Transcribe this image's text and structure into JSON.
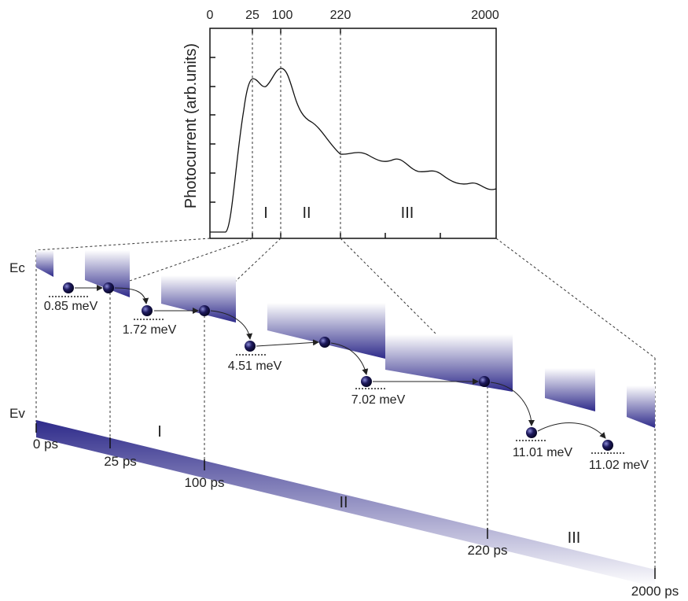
{
  "plot": {
    "y_label": "Photocurrent (arb.units)",
    "top_ticks": [
      "0",
      "25",
      "100",
      "220",
      "2000"
    ],
    "regions": [
      "I",
      "II",
      "III"
    ]
  },
  "diagram": {
    "bands": [
      "Ec",
      "Ev"
    ],
    "times": [
      "0 ps",
      "25 ps",
      "100 ps",
      "220 ps",
      "2000 ps"
    ],
    "regions": [
      "I",
      "II",
      "III"
    ],
    "energies": [
      "0.85 meV",
      "1.72 meV",
      "4.51 meV",
      "7.02 meV",
      "11.01 meV",
      "11.02 meV"
    ]
  }
}
